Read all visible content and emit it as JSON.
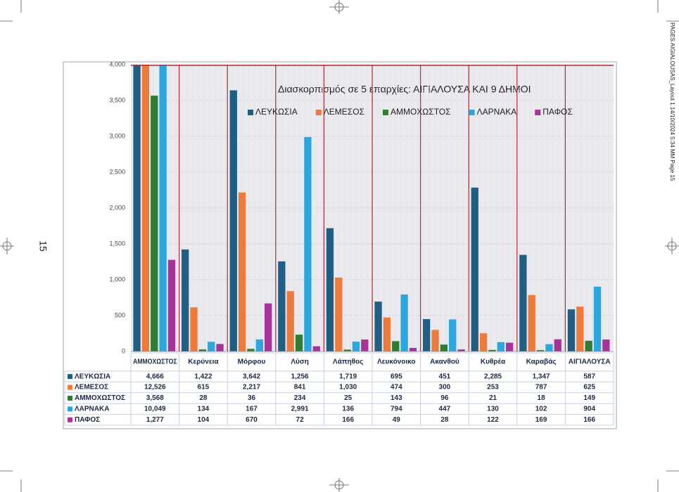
{
  "page_number": "15",
  "slug": "PAGES AIGIALOUSAS_Layout 1  14/10/2024  5:34 ΜΜ  Page 15",
  "chart_data": {
    "type": "bar",
    "title": "Διασκορπισμός σε 5 επαρχίες:  ΑΙΓΙΑΛΟΥΣΑ ΚΑΙ 9 ΔΗΜΟΙ",
    "categories": [
      "ΑΜΜΟΧΩΣΤΟΣ",
      "Κερύνεια",
      "Μόρφου",
      "Λύση",
      "Λάπηθος",
      "Λευκόνοικο",
      "Ακανθού",
      "Κυθρέα",
      "Καραβάς",
      "ΑΙΓΙΑΛΟΥΣΑ"
    ],
    "series": [
      {
        "name": "ΛΕΥΚΩΣΙΑ",
        "color": "#1f5f86",
        "values": [
          4666,
          1422,
          3642,
          1256,
          1719,
          695,
          451,
          2285,
          1347,
          587
        ],
        "value_labels": [
          "4,666",
          "1,422",
          "3,642",
          "1,256",
          "1,719",
          "695",
          "451",
          "2,285",
          "1,347",
          "587"
        ]
      },
      {
        "name": "ΛΕΜΕΣΟΣ",
        "color": "#f07a3a",
        "values": [
          12526,
          615,
          2217,
          841,
          1030,
          474,
          300,
          253,
          787,
          625
        ],
        "value_labels": [
          "12,526",
          "615",
          "2,217",
          "841",
          "1,030",
          "474",
          "300",
          "253",
          "787",
          "625"
        ]
      },
      {
        "name": "ΑΜΜΟΧΩΣΤΟΣ",
        "color": "#2e7d32",
        "values": [
          3568,
          28,
          36,
          234,
          25,
          143,
          96,
          21,
          18,
          149
        ],
        "value_labels": [
          "3,568",
          "28",
          "36",
          "234",
          "25",
          "143",
          "96",
          "21",
          "18",
          "149"
        ]
      },
      {
        "name": "ΛΑΡΝΑΚΑ",
        "color": "#2aa7e0",
        "values": [
          10049,
          134,
          167,
          2991,
          136,
          794,
          447,
          130,
          102,
          904
        ],
        "value_labels": [
          "10,049",
          "134",
          "167",
          "2,991",
          "136",
          "794",
          "447",
          "130",
          "102",
          "904"
        ]
      },
      {
        "name": "ΠΑΦΟΣ",
        "color": "#a8329a",
        "values": [
          1277,
          104,
          670,
          72,
          166,
          49,
          28,
          122,
          169,
          166
        ],
        "value_labels": [
          "1,277",
          "104",
          "670",
          "72",
          "166",
          "49",
          "28",
          "122",
          "169",
          "166"
        ]
      }
    ],
    "ylim": [
      0,
      4000
    ],
    "yticks": [
      0,
      500,
      {
        "value": 1000,
        "label": "1,000"
      },
      {
        "value": 1500,
        "label": "1,500"
      },
      {
        "value": 2000,
        "label": "2,000"
      },
      {
        "value": 2500,
        "label": "2,500"
      },
      {
        "value": 3000,
        "label": "3,000"
      },
      {
        "value": 3500,
        "label": "3,500"
      },
      {
        "value": 4000,
        "label": "4,000"
      }
    ],
    "grid": true
  }
}
